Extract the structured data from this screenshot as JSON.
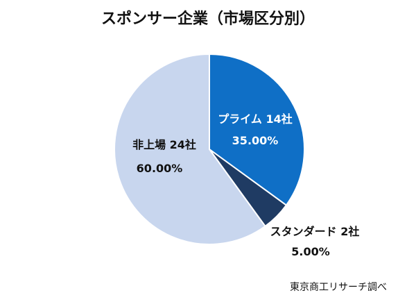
{
  "chart_data": {
    "type": "pie",
    "title": "スポンサー企業（市場区分別）",
    "source": "東京商工リサーチ調べ",
    "slices": [
      {
        "label": "プライム 14社",
        "count": 14,
        "percent_label": "35.00%",
        "value": 35.0,
        "color": "#0F6FC6"
      },
      {
        "label": "スタンダード 2社",
        "count": 2,
        "percent_label": "5.00%",
        "value": 5.0,
        "color": "#1F3B63"
      },
      {
        "label": "非上場 24社",
        "count": 24,
        "percent_label": "60.00%",
        "value": 60.0,
        "color": "#C8D6EE"
      }
    ]
  }
}
